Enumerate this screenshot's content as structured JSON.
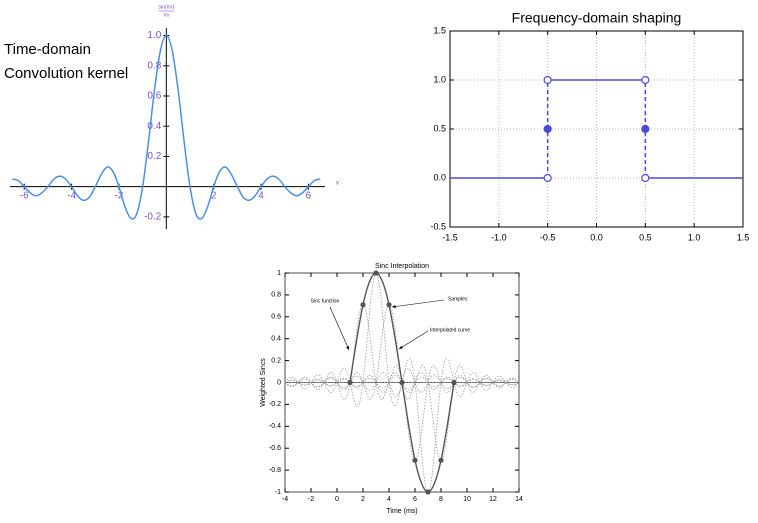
{
  "chart_data": [
    {
      "type": "line",
      "title_lines": [
        "Time-domain",
        "Convolution kernel"
      ],
      "ylabel_lines": [
        "sin(πx)",
        "πx"
      ],
      "xlabel": "x",
      "axes": "crossed",
      "smooth": true,
      "color": "#4a90e2",
      "tick_color": "#7b4fd6",
      "xlim": [
        -6.6,
        6.7
      ],
      "ylim": [
        -0.28,
        1.05
      ],
      "xticks": [
        -6,
        -4,
        -2,
        2,
        4,
        6
      ],
      "yticks": [
        -0.2,
        0.2,
        0.4,
        0.6,
        0.8,
        {
          "value": 1,
          "label": "1.0"
        }
      ],
      "x": [
        -6.5,
        -6.25,
        -6,
        -5.75,
        -5.5,
        -5.25,
        -5,
        -4.75,
        -4.5,
        -4.25,
        -4,
        -3.75,
        -3.5,
        -3.25,
        -3,
        -2.75,
        -2.5,
        -2.25,
        -2,
        -1.75,
        -1.5,
        -1.25,
        -1,
        -0.75,
        -0.5,
        -0.25,
        0,
        0.25,
        0.5,
        0.75,
        1,
        1.25,
        1.5,
        1.75,
        2,
        2.25,
        2.5,
        2.75,
        3,
        3.25,
        3.5,
        3.75,
        4,
        4.25,
        4.5,
        4.75,
        5,
        5.25,
        5.5,
        5.75,
        6,
        6.25,
        6.5
      ],
      "values": [
        0.05,
        0.04,
        0,
        -0.04,
        -0.06,
        -0.04,
        0,
        0.05,
        0.07,
        0.05,
        0,
        -0.06,
        -0.09,
        -0.07,
        0,
        0.08,
        0.13,
        0.1,
        0,
        -0.13,
        -0.21,
        -0.18,
        0,
        0.3,
        0.64,
        0.9,
        1,
        0.9,
        0.64,
        0.3,
        0,
        -0.18,
        -0.21,
        -0.13,
        0,
        0.1,
        0.13,
        0.08,
        0,
        -0.07,
        -0.09,
        -0.06,
        0,
        0.05,
        0.07,
        0.05,
        0,
        -0.04,
        -0.06,
        -0.04,
        0,
        0.04,
        0.05
      ]
    },
    {
      "type": "line",
      "title": "Frequency-domain shaping",
      "axes": "boxed",
      "grid": true,
      "smooth": false,
      "tick_color": "#000000",
      "xlim": [
        -1.5,
        1.5
      ],
      "ylim": [
        -0.5,
        1.5
      ],
      "xticks": [
        -1.5,
        {
          "value": -1,
          "label": "-1.0"
        },
        -0.5,
        {
          "value": 0,
          "label": "0.0"
        },
        0.5,
        {
          "value": 1,
          "label": "1.0"
        },
        1.5
      ],
      "yticks": [
        -0.5,
        {
          "value": 0,
          "label": "0.0"
        },
        0.5,
        {
          "value": 1,
          "label": "1.0"
        },
        1.5
      ],
      "series": [
        {
          "color": "#4b4bd9",
          "style": "solid",
          "x": [
            -1.5,
            -0.5,
            null,
            -0.5,
            0.5,
            null,
            0.5,
            1.5
          ],
          "values": [
            0,
            0,
            null,
            1,
            1,
            null,
            0,
            0
          ]
        },
        {
          "color": "#4b4bd9",
          "style": "dashed",
          "x": [
            -0.5,
            -0.5,
            null,
            0.5,
            0.5
          ],
          "values": [
            0,
            1,
            null,
            0,
            1
          ]
        },
        {
          "color": "#4b4bd9",
          "marker": "open",
          "x": [
            -0.5,
            -0.5,
            0.5,
            0.5
          ],
          "values": [
            0,
            1,
            1,
            0
          ]
        },
        {
          "color": "#4b4bd9",
          "marker": "filled",
          "x": [
            -0.5,
            0.5
          ],
          "values": [
            0.5,
            0.5
          ]
        }
      ]
    },
    {
      "type": "interpolation",
      "title": "Sinc Interpolation",
      "xlabel": "Time (ms)",
      "ylabel": "Weighted Sincs",
      "axes": "boxed",
      "smooth": true,
      "tick_color": "#000000",
      "sinc_color": "#9a9a9a",
      "xlim": [
        -4,
        14
      ],
      "ylim": [
        -1,
        1
      ],
      "xticks": [
        -4,
        -2,
        0,
        2,
        4,
        6,
        8,
        10,
        12,
        14
      ],
      "yticks": [
        -1,
        -0.8,
        -0.6,
        -0.4,
        -0.2,
        0,
        0.2,
        0.4,
        0.6,
        0.8,
        1
      ],
      "annotations": [
        {
          "text": "Sinc function"
        },
        {
          "text": "Samples"
        },
        {
          "text": "Interpolated curve"
        }
      ],
      "series": [
        {
          "color": "#555555",
          "style": "solid",
          "x": [
            1,
            1.5,
            2,
            2.5,
            3,
            3.5,
            4,
            4.5,
            5,
            5.5,
            6,
            6.5,
            7,
            7.5,
            8,
            8.5,
            9
          ],
          "values": [
            0,
            0.38,
            0.71,
            0.92,
            1,
            0.92,
            0.71,
            0.38,
            0,
            -0.38,
            -0.71,
            -0.92,
            -1,
            -0.92,
            -0.71,
            -0.38,
            0
          ]
        },
        {
          "color": "#555555",
          "marker": "filled",
          "x": [
            1,
            2,
            3,
            4,
            5,
            6,
            7,
            8,
            9
          ],
          "values": [
            0,
            0.71,
            1,
            0.71,
            0,
            -0.71,
            -1,
            -0.71,
            0
          ]
        }
      ]
    }
  ]
}
